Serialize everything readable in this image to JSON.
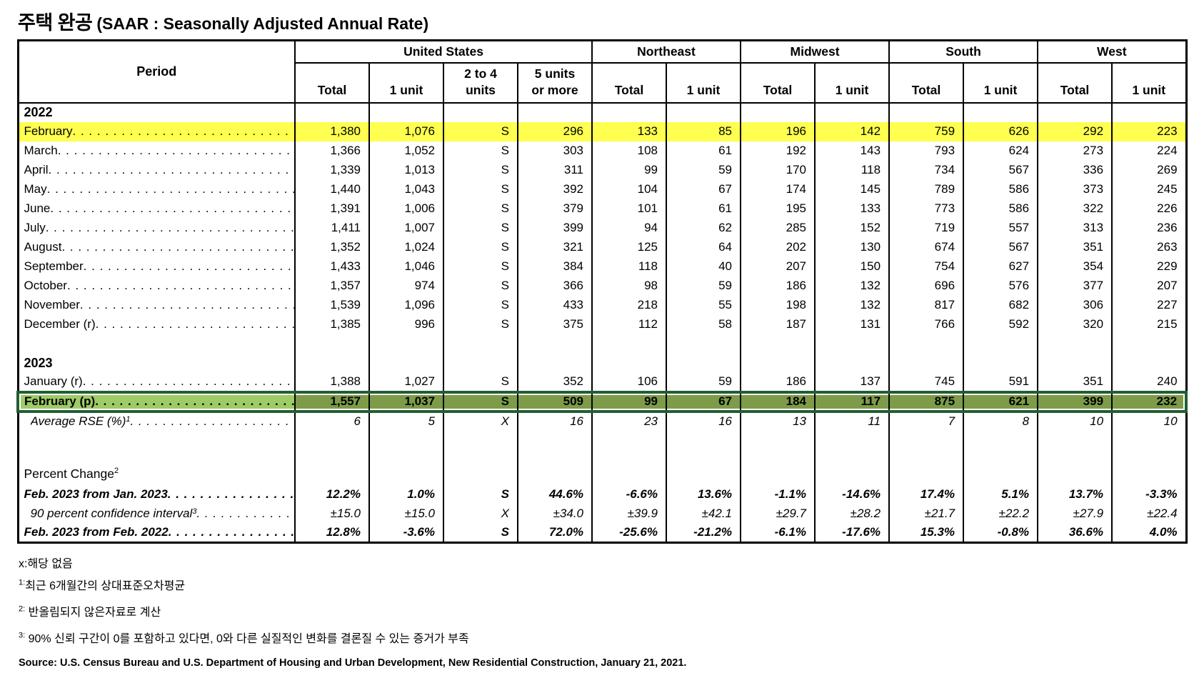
{
  "title": {
    "korean": "주택 완공",
    "english": "(SAAR : Seasonally Adjusted Annual Rate)"
  },
  "table": {
    "period_header": "Period",
    "groups": [
      {
        "label": "United States",
        "span": 4
      },
      {
        "label": "Northeast",
        "span": 2
      },
      {
        "label": "Midwest",
        "span": 2
      },
      {
        "label": "South",
        "span": 2
      },
      {
        "label": "West",
        "span": 2
      }
    ],
    "sub_headers": [
      "Total",
      "1 unit",
      "2 to 4\nunits",
      "5 units\nor more",
      "Total",
      "1 unit",
      "Total",
      "1 unit",
      "Total",
      "1 unit",
      "Total",
      "1 unit"
    ],
    "rows": [
      {
        "kind": "year",
        "label": "2022"
      },
      {
        "kind": "data",
        "label": "February",
        "highlight": "yellow",
        "values": [
          "1,380",
          "1,076",
          "S",
          "296",
          "133",
          "85",
          "196",
          "142",
          "759",
          "626",
          "292",
          "223"
        ]
      },
      {
        "kind": "data",
        "label": "March",
        "values": [
          "1,366",
          "1,052",
          "S",
          "303",
          "108",
          "61",
          "192",
          "143",
          "793",
          "624",
          "273",
          "224"
        ]
      },
      {
        "kind": "data",
        "label": "April",
        "values": [
          "1,339",
          "1,013",
          "S",
          "311",
          "99",
          "59",
          "170",
          "118",
          "734",
          "567",
          "336",
          "269"
        ]
      },
      {
        "kind": "data",
        "label": "May",
        "values": [
          "1,440",
          "1,043",
          "S",
          "392",
          "104",
          "67",
          "174",
          "145",
          "789",
          "586",
          "373",
          "245"
        ]
      },
      {
        "kind": "data",
        "label": "June",
        "values": [
          "1,391",
          "1,006",
          "S",
          "379",
          "101",
          "61",
          "195",
          "133",
          "773",
          "586",
          "322",
          "226"
        ]
      },
      {
        "kind": "data",
        "label": "July",
        "values": [
          "1,411",
          "1,007",
          "S",
          "399",
          "94",
          "62",
          "285",
          "152",
          "719",
          "557",
          "313",
          "236"
        ]
      },
      {
        "kind": "data",
        "label": "August",
        "values": [
          "1,352",
          "1,024",
          "S",
          "321",
          "125",
          "64",
          "202",
          "130",
          "674",
          "567",
          "351",
          "263"
        ]
      },
      {
        "kind": "data",
        "label": "September",
        "values": [
          "1,433",
          "1,046",
          "S",
          "384",
          "118",
          "40",
          "207",
          "150",
          "754",
          "627",
          "354",
          "229"
        ]
      },
      {
        "kind": "data",
        "label": "October",
        "values": [
          "1,357",
          "974",
          "S",
          "366",
          "98",
          "59",
          "186",
          "132",
          "696",
          "576",
          "377",
          "207"
        ]
      },
      {
        "kind": "data",
        "label": "November",
        "values": [
          "1,539",
          "1,096",
          "S",
          "433",
          "218",
          "55",
          "198",
          "132",
          "817",
          "682",
          "306",
          "227"
        ]
      },
      {
        "kind": "data",
        "label": "December (r)",
        "values": [
          "1,385",
          "996",
          "S",
          "375",
          "112",
          "58",
          "187",
          "131",
          "766",
          "592",
          "320",
          "215"
        ]
      },
      {
        "kind": "blank"
      },
      {
        "kind": "year",
        "label": "2023"
      },
      {
        "kind": "data",
        "label": "January (r)",
        "values": [
          "1,388",
          "1,027",
          "S",
          "352",
          "106",
          "59",
          "186",
          "137",
          "745",
          "591",
          "351",
          "240"
        ]
      },
      {
        "kind": "data",
        "label": "February (p)",
        "highlight": "green",
        "bold": true,
        "values": [
          "1,557",
          "1,037",
          "S",
          "509",
          "99",
          "67",
          "184",
          "117",
          "875",
          "621",
          "399",
          "232"
        ]
      },
      {
        "kind": "data",
        "label": "Average RSE (%)",
        "sup": "1",
        "style": "italic",
        "indent": true,
        "values": [
          "6",
          "5",
          "X",
          "16",
          "23",
          "16",
          "13",
          "11",
          "7",
          "8",
          "10",
          "10"
        ]
      },
      {
        "kind": "blank",
        "tall": true
      },
      {
        "kind": "label",
        "label": "Percent Change",
        "sup": "2"
      },
      {
        "kind": "data",
        "label": "Feb. 2023 from Jan. 2023",
        "style": "bold-italic",
        "values": [
          "12.2%",
          "1.0%",
          "S",
          "44.6%",
          "-6.6%",
          "13.6%",
          "-1.1%",
          "-14.6%",
          "17.4%",
          "5.1%",
          "13.7%",
          "-3.3%"
        ]
      },
      {
        "kind": "data",
        "label": "90 percent confidence interval",
        "sup": "3",
        "style": "italic",
        "indent": true,
        "values": [
          "±15.0",
          "±15.0",
          "X",
          "±34.0",
          "±39.9",
          "±42.1",
          "±29.7",
          "±28.2",
          "±21.7",
          "±22.2",
          "±27.9",
          "±22.4"
        ]
      },
      {
        "kind": "data",
        "label": "Feb. 2023 from Feb. 2022",
        "style": "bold-italic",
        "values": [
          "12.8%",
          "-3.6%",
          "S",
          "72.0%",
          "-25.6%",
          "-21.2%",
          "-6.1%",
          "-17.6%",
          "15.3%",
          "-0.8%",
          "36.6%",
          "4.0%"
        ]
      }
    ]
  },
  "colors": {
    "yellow_highlight": "#FFFF4F",
    "green_label_cell": "#9ECB66",
    "green_data_cell": "#7D9B48",
    "selection_border": "#215E33"
  },
  "footnotes": [
    {
      "marker": "x:",
      "superscript": false,
      "text": "해당 없음"
    },
    {
      "marker": "1:",
      "superscript": true,
      "text": "최근 6개월간의 상대표준오차평균"
    },
    {
      "marker": "2:",
      "superscript": true,
      "text": " 반올림되지 않은자료로 계산"
    },
    {
      "marker": "3:",
      "superscript": true,
      "text": " 90% 신뢰 구간이 0를 포함하고 있다면, 0와 다른 실질적인 변화를 결론질 수 있는 증거가 부족"
    }
  ],
  "source": "Source: U.S. Census Bureau and U.S. Department of Housing and Urban Development, New Residential Construction, January 21, 2021."
}
